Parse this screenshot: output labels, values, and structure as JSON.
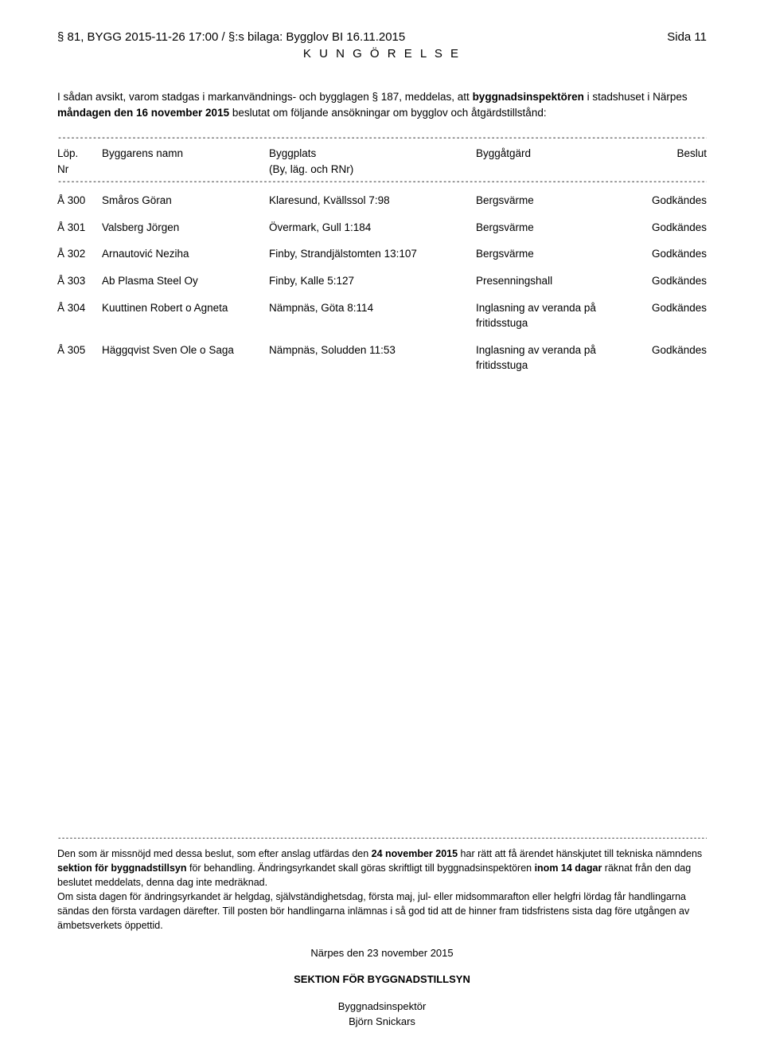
{
  "header": {
    "left": "§ 81, BYGG 2015-11-26 17:00 / §:s bilaga: Bygglov BI 16.11.2015",
    "right": "Sida 11"
  },
  "title": "K U N G Ö R E L S E",
  "intro": {
    "prefix": "I sådan avsikt, varom stadgas i markanvändnings- och bygglagen § 187, meddelas, att ",
    "bold1": "byggnadsinspektören",
    "mid1": " i stadshuset i Närpes ",
    "bold2": "måndagen den 16 november 2015",
    "suffix": " beslutat om följande ansökningar om bygglov och åtgärdstillstånd:"
  },
  "table_header": {
    "lop1": "Löp.",
    "lop2": "Nr",
    "name": "Byggarens namn",
    "plats1": "Byggplats",
    "plats2": "(By, läg. och RNr)",
    "atgard": "Byggåtgärd",
    "beslut": "Beslut"
  },
  "permits": [
    {
      "lop": "Å 300",
      "name": "Småros Göran",
      "plats": "Klaresund, Kvällssol 7:98",
      "atgard": "Bergsvärme",
      "beslut": "Godkändes"
    },
    {
      "lop": "Å 301",
      "name": "Valsberg Jörgen",
      "plats": "Övermark, Gull 1:184",
      "atgard": "Bergsvärme",
      "beslut": "Godkändes"
    },
    {
      "lop": "Å 302",
      "name": "Arnautović Neziha",
      "plats": "Finby, Strandjälstomten 13:107",
      "atgard": "Bergsvärme",
      "beslut": "Godkändes"
    },
    {
      "lop": "Å 303",
      "name": "Ab Plasma Steel Oy",
      "plats": "Finby, Kalle 5:127",
      "atgard": "Presenningshall",
      "beslut": "Godkändes"
    },
    {
      "lop": "Å 304",
      "name": "Kuuttinen Robert o Agneta",
      "plats": "Nämpnäs, Göta 8:114",
      "atgard": "Inglasning av veranda på fritidsstuga",
      "beslut": "Godkändes"
    },
    {
      "lop": "Å 305",
      "name": "Häggqvist Sven Ole o Saga",
      "plats": "Nämpnäs, Soludden 11:53",
      "atgard": "Inglasning av veranda på fritidsstuga",
      "beslut": "Godkändes"
    }
  ],
  "footer": {
    "p1_a": "Den som är missnöjd med dessa beslut, som efter anslag utfärdas den ",
    "p1_bold": "24 november 2015",
    "p1_b": " har rätt att få ärendet hänskjutet till tekniska nämndens ",
    "p1_bold2": "sektion för byggnadstillsyn",
    "p1_c": " för behandling. Ändringsyrkandet skall göras skriftligt till byggnadsinspektören ",
    "p1_bold3": "inom 14 dagar",
    "p1_d": " räknat från den dag beslutet meddelats, denna dag inte medräknad.",
    "p2": "Om sista dagen för ändringsyrkandet är helgdag, självständighetsdag, första maj, jul- eller midsommarafton eller helgfri lördag får handlingarna sändas den första vardagen därefter. Till posten bör handlingarna inlämnas i så god tid att de hinner fram tidsfristens sista dag före utgången av ämbetsverkets öppettid.",
    "date": "Närpes den 23 november 2015",
    "section": "SEKTION FÖR BYGGNADSTILLSYN",
    "role": "Byggnadsinspektör",
    "name": "Björn Snickars"
  },
  "dash_short": "----------------------------------------------------------------------------------------------------------------------------------------------------------------------------",
  "dash_long": "-------------------------------------------------------------------------------------------------------------------------------------------------------------------------------------"
}
